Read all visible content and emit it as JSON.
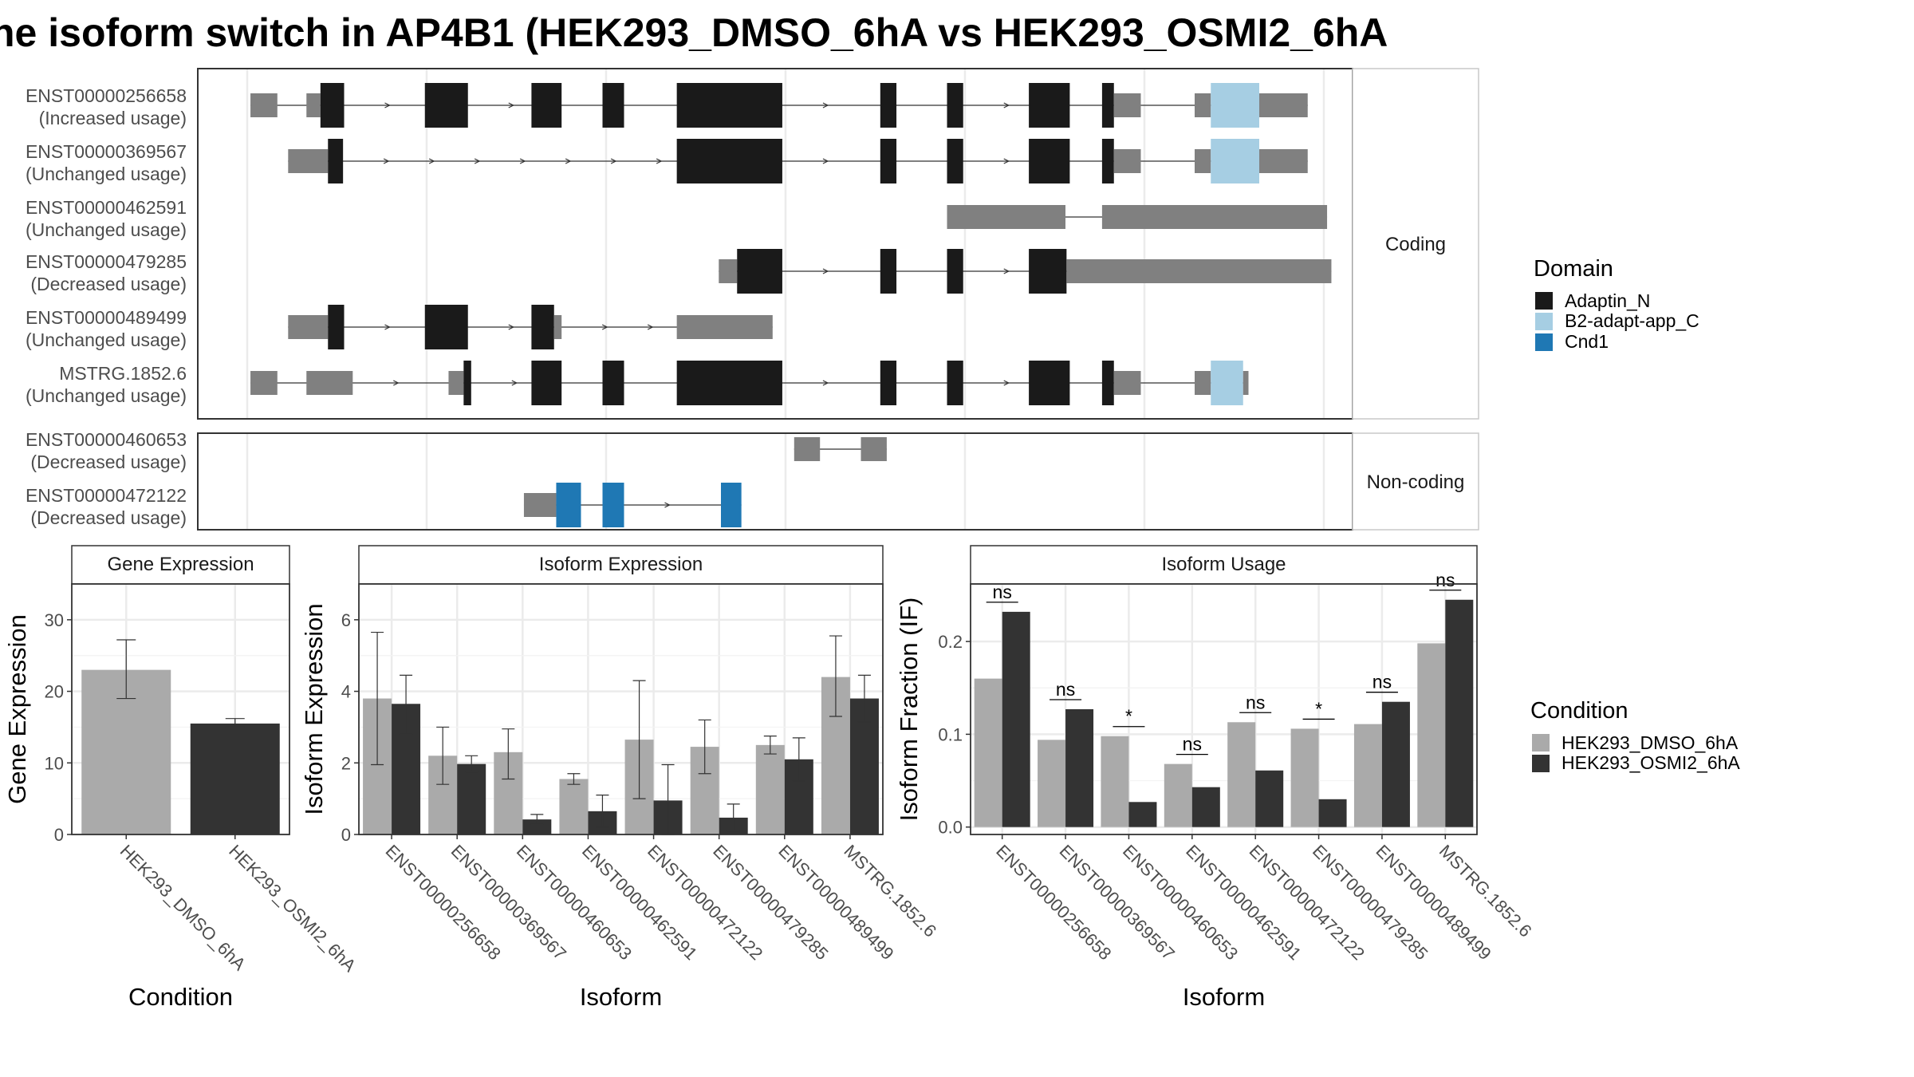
{
  "title": "ne isoform switch in AP4B1 (HEK293_DMSO_6hA vs HEK293_OSMI2_6hA",
  "colors": {
    "exon": "#808080",
    "Adaptin_N": "#1a1a1a",
    "B2-adapt-app_C": "#a6cee3",
    "Cnd1": "#1f78b4",
    "dmso": "#aaaaaa",
    "osmi": "#333333",
    "grid": "#ebebeb",
    "panelBorder": "#333333",
    "stripBorder": "#c8c8c8"
  },
  "transcripts": {
    "coding_strip": "Coding",
    "noncoding_strip": "Non-coding",
    "genomic_range": [
      0,
      1000
    ],
    "coding": [
      {
        "id": "ENST00000256658",
        "usage": "(Increased usage)",
        "exons": [
          [
            3,
            28,
            "t"
          ],
          [
            55,
            68,
            "t"
          ],
          [
            68,
            90,
            "Adaptin_N"
          ],
          [
            165,
            205,
            "Adaptin_N"
          ],
          [
            264,
            292,
            "Adaptin_N"
          ],
          [
            330,
            350,
            "Adaptin_N"
          ],
          [
            399,
            497,
            "Adaptin_N"
          ],
          [
            588,
            603,
            "Adaptin_N"
          ],
          [
            650,
            665,
            "Adaptin_N"
          ],
          [
            726,
            764,
            "Adaptin_N"
          ],
          [
            794,
            805,
            "Adaptin_N"
          ],
          [
            805,
            830,
            "t"
          ],
          [
            880,
            895,
            "t"
          ],
          [
            895,
            940,
            "B2-adapt-app_C"
          ],
          [
            940,
            985,
            "t"
          ]
        ]
      },
      {
        "id": "ENST00000369567",
        "usage": "(Unchanged usage)",
        "exons": [
          [
            38,
            75,
            "t"
          ],
          [
            75,
            89,
            "Adaptin_N"
          ],
          [
            399,
            497,
            "Adaptin_N"
          ],
          [
            588,
            603,
            "Adaptin_N"
          ],
          [
            650,
            665,
            "Adaptin_N"
          ],
          [
            726,
            764,
            "Adaptin_N"
          ],
          [
            794,
            805,
            "Adaptin_N"
          ],
          [
            805,
            830,
            "t"
          ],
          [
            880,
            895,
            "t"
          ],
          [
            895,
            940,
            "B2-adapt-app_C"
          ],
          [
            940,
            985,
            "t"
          ]
        ]
      },
      {
        "id": "ENST00000462591",
        "usage": "(Unchanged usage)",
        "exons": [
          [
            650,
            760,
            "t"
          ],
          [
            794,
            1003,
            "t"
          ]
        ]
      },
      {
        "id": "ENST00000479285",
        "usage": "(Decreased usage)",
        "exons": [
          [
            438,
            455,
            "t"
          ],
          [
            455,
            497,
            "Adaptin_N"
          ],
          [
            588,
            603,
            "Adaptin_N"
          ],
          [
            650,
            665,
            "Adaptin_N"
          ],
          [
            726,
            761,
            "Adaptin_N"
          ],
          [
            761,
            1007,
            "t"
          ]
        ]
      },
      {
        "id": "ENST00000489499",
        "usage": "(Unchanged usage)",
        "exons": [
          [
            38,
            75,
            "t"
          ],
          [
            75,
            90,
            "Adaptin_N"
          ],
          [
            165,
            205,
            "Adaptin_N"
          ],
          [
            264,
            285,
            "Adaptin_N"
          ],
          [
            285,
            292,
            "t"
          ],
          [
            399,
            488,
            "t"
          ]
        ]
      },
      {
        "id": "MSTRG.1852.6",
        "usage": "(Unchanged usage)",
        "exons": [
          [
            3,
            28,
            "t"
          ],
          [
            55,
            98,
            "t"
          ],
          [
            187,
            201,
            "t"
          ],
          [
            201,
            208,
            "Adaptin_N"
          ],
          [
            264,
            292,
            "Adaptin_N"
          ],
          [
            330,
            350,
            "Adaptin_N"
          ],
          [
            399,
            497,
            "Adaptin_N"
          ],
          [
            588,
            603,
            "Adaptin_N"
          ],
          [
            650,
            665,
            "Adaptin_N"
          ],
          [
            726,
            764,
            "Adaptin_N"
          ],
          [
            794,
            805,
            "Adaptin_N"
          ],
          [
            805,
            830,
            "t"
          ],
          [
            880,
            895,
            "t"
          ],
          [
            895,
            925,
            "B2-adapt-app_C"
          ],
          [
            925,
            930,
            "t"
          ]
        ]
      }
    ],
    "noncoding": [
      {
        "id": "ENST00000460653",
        "usage": "(Decreased usage)",
        "exons": [
          [
            508,
            532,
            "t"
          ],
          [
            570,
            594,
            "t"
          ]
        ]
      },
      {
        "id": "ENST00000472122",
        "usage": "(Decreased usage)",
        "exons": [
          [
            257,
            287,
            "t"
          ],
          [
            287,
            310,
            "Cnd1"
          ],
          [
            330,
            350,
            "Cnd1"
          ],
          [
            440,
            459,
            "Cnd1"
          ]
        ]
      }
    ]
  },
  "legends": {
    "domain_title": "Domain",
    "domain_items": [
      "Adaptin_N",
      "B2-adapt-app_C",
      "Cnd1"
    ],
    "condition_title": "Condition",
    "condition_items": [
      "HEK293_DMSO_6hA",
      "HEK293_OSMI2_6hA"
    ]
  },
  "chart_data": [
    {
      "type": "bar",
      "title": "Gene Expression",
      "xlabel": "Condition",
      "ylabel": "Gene Expression",
      "ylim": [
        0,
        35
      ],
      "yticks": [
        0,
        10,
        20,
        30
      ],
      "categories": [
        "HEK293_DMSO_6hA",
        "HEK293_OSMI2_6hA"
      ],
      "values": [
        23.0,
        15.5
      ],
      "errors": [
        [
          19.0,
          27.2
        ],
        [
          15.0,
          16.2
        ]
      ]
    },
    {
      "type": "bar",
      "title": "Isoform Expression",
      "xlabel": "Isoform",
      "ylabel": "Isoform Expression",
      "ylim": [
        0,
        7
      ],
      "yticks": [
        0,
        2,
        4,
        6
      ],
      "categories": [
        "ENST00000256658",
        "ENST00000369567",
        "ENST00000460653",
        "ENST00000462591",
        "ENST00000472122",
        "ENST00000479285",
        "ENST00000489499",
        "MSTRG.1852.6"
      ],
      "series": [
        {
          "name": "HEK293_DMSO_6hA",
          "values": [
            3.8,
            2.2,
            2.3,
            1.55,
            2.65,
            2.45,
            2.5,
            4.4
          ],
          "errors": [
            [
              1.95,
              5.65
            ],
            [
              1.4,
              3.0
            ],
            [
              1.55,
              2.95
            ],
            [
              1.4,
              1.7
            ],
            [
              1.0,
              4.3
            ],
            [
              1.7,
              3.2
            ],
            [
              2.25,
              2.75
            ],
            [
              3.3,
              5.55
            ]
          ]
        },
        {
          "name": "HEK293_OSMI2_6hA",
          "values": [
            3.65,
            1.97,
            0.42,
            0.65,
            0.95,
            0.47,
            2.1,
            3.8
          ],
          "errors": [
            [
              2.8,
              4.45
            ],
            [
              1.75,
              2.2
            ],
            [
              0.28,
              0.56
            ],
            [
              0.2,
              1.1
            ],
            [
              0.0,
              1.95
            ],
            [
              0.1,
              0.85
            ],
            [
              1.5,
              2.7
            ],
            [
              3.15,
              4.45
            ]
          ]
        }
      ]
    },
    {
      "type": "bar",
      "title": "Isoform Usage",
      "xlabel": "Isoform",
      "ylabel": "Isoform Fraction (IF)",
      "ylim": [
        -0.008,
        0.262
      ],
      "yticks": [
        0.0,
        0.1,
        0.2
      ],
      "ytick_labels": [
        "0.0",
        "0.1",
        "0.2"
      ],
      "categories": [
        "ENST00000256658",
        "ENST00000369567",
        "ENST00000460653",
        "ENST00000462591",
        "ENST00000472122",
        "ENST00000479285",
        "ENST00000489499",
        "MSTRG.1852.6"
      ],
      "series": [
        {
          "name": "HEK293_DMSO_6hA",
          "values": [
            0.16,
            0.094,
            0.098,
            0.068,
            0.113,
            0.106,
            0.111,
            0.198
          ]
        },
        {
          "name": "HEK293_OSMI2_6hA",
          "values": [
            0.232,
            0.127,
            0.027,
            0.043,
            0.061,
            0.03,
            0.135,
            0.245
          ]
        }
      ],
      "significance": [
        "ns",
        "ns",
        "*",
        "ns",
        "ns",
        "*",
        "ns",
        "ns"
      ]
    }
  ]
}
